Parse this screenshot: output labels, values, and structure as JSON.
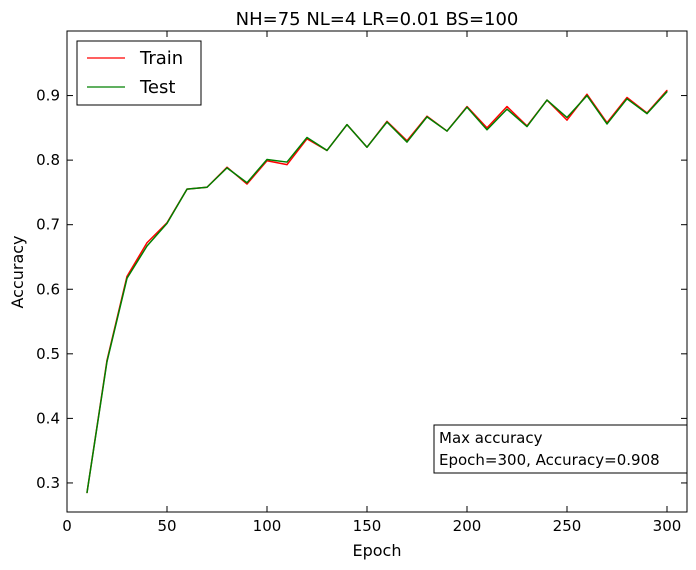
{
  "chart_data": {
    "type": "line",
    "title": "NH=75 NL=4 LR=0.01 BS=100",
    "xlabel": "Epoch",
    "ylabel": "Accuracy",
    "xlim": [
      0,
      310
    ],
    "ylim": [
      0.255,
      1.0
    ],
    "xticks": [
      0,
      50,
      100,
      150,
      200,
      250,
      300
    ],
    "yticks": [
      0.3,
      0.4,
      0.5,
      0.6,
      0.7,
      0.8,
      0.9
    ],
    "grid": false,
    "legend": "top-left",
    "x": [
      10,
      20,
      30,
      40,
      50,
      60,
      70,
      80,
      90,
      100,
      110,
      120,
      130,
      140,
      150,
      160,
      170,
      180,
      190,
      200,
      210,
      220,
      230,
      240,
      250,
      260,
      270,
      280,
      290,
      300
    ],
    "series": [
      {
        "name": "Train",
        "color": "#ff0000",
        "values": [
          0.285,
          0.49,
          0.62,
          0.672,
          0.703,
          0.755,
          0.758,
          0.789,
          0.763,
          0.799,
          0.793,
          0.833,
          0.815,
          0.855,
          0.82,
          0.86,
          0.83,
          0.868,
          0.845,
          0.883,
          0.85,
          0.883,
          0.853,
          0.893,
          0.862,
          0.902,
          0.858,
          0.897,
          0.873,
          0.908
        ]
      },
      {
        "name": "Test",
        "color": "#008000",
        "values": [
          0.285,
          0.488,
          0.617,
          0.667,
          0.702,
          0.755,
          0.758,
          0.788,
          0.765,
          0.801,
          0.797,
          0.835,
          0.815,
          0.855,
          0.82,
          0.859,
          0.828,
          0.867,
          0.845,
          0.882,
          0.847,
          0.879,
          0.852,
          0.893,
          0.866,
          0.9,
          0.856,
          0.895,
          0.872,
          0.906
        ]
      }
    ],
    "annotation": {
      "line1": "Max accuracy",
      "line2": "Epoch=300, Accuracy=0.908"
    }
  }
}
